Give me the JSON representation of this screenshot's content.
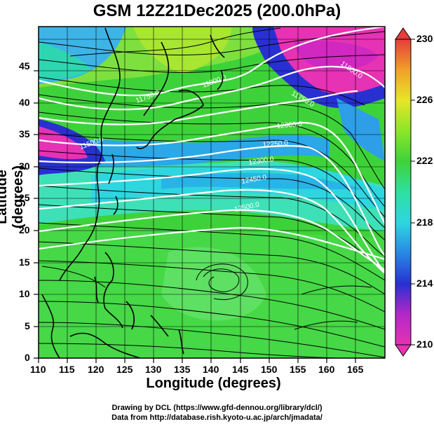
{
  "title": "GSM 12Z21Dec2025 (200.0hPa)",
  "x_axis_label": "Longitude (degrees)",
  "y_axis_label": "Latitude  (degrees)",
  "credits": {
    "line1": "Drawing by DCL (https://www.gfd-dennou.org/library/dcl/)",
    "line2": "Data from http://database.rish.kyoto-u.ac.jp/arch/jmadata/"
  },
  "map": {
    "lon_range": [
      110,
      170
    ],
    "lat_range": [
      0,
      50
    ],
    "x_ticks": [
      "110",
      "115",
      "120",
      "125",
      "130",
      "135",
      "140",
      "145",
      "150",
      "155",
      "160",
      "165"
    ],
    "y_ticks": [
      "0",
      "5",
      "10",
      "15",
      "20",
      "25",
      "30",
      "35",
      "40",
      "45"
    ],
    "field": "temperature (shading) with geopotential height contours and streamlines",
    "contour_labels": [
      "11500.0",
      "11750.0",
      "11800.0",
      "12000.0",
      "12250.0",
      "12300.0",
      "12450.0",
      "12500.0"
    ],
    "colorbar_labels": [
      "230",
      "226",
      "222",
      "218",
      "214",
      "210"
    ],
    "colorbar_range": [
      210,
      230
    ],
    "colors": {
      "magenta": "#e632b4",
      "blue": "#2830d2",
      "cyan": "#2ed6e0",
      "green": "#3ed23a",
      "yellow_green": "#b4e628",
      "orange": "#f0a028",
      "red": "#e63c3c"
    }
  }
}
